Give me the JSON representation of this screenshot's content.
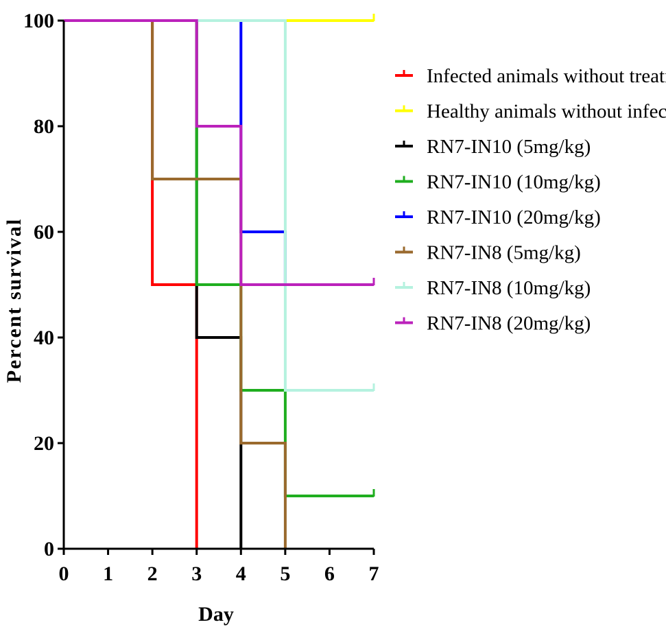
{
  "chart_data": {
    "type": "line",
    "title": "",
    "xlabel": "Day",
    "ylabel": "Percent survival",
    "xlim": [
      0,
      7
    ],
    "ylim": [
      0,
      100
    ],
    "x_ticks": [
      "0",
      "1",
      "2",
      "3",
      "4",
      "5",
      "6",
      "7"
    ],
    "y_ticks": [
      "0",
      "20",
      "40",
      "60",
      "80",
      "100"
    ],
    "grid": false,
    "legend_position": "right",
    "series": [
      {
        "name": "Infected animals without treatment",
        "color": "#ff0000",
        "x": [
          0,
          2,
          2,
          3,
          3
        ],
        "y": [
          100,
          100,
          50,
          50,
          0
        ]
      },
      {
        "name": "Healthy animals without infection",
        "color": "#ffff00",
        "x": [
          0,
          7
        ],
        "y": [
          100,
          100
        ]
      },
      {
        "name": "RN7-IN10 (5mg/kg)",
        "color": "#000000",
        "x": [
          0,
          3,
          3,
          4,
          4
        ],
        "y": [
          100,
          100,
          40,
          40,
          0
        ]
      },
      {
        "name": "RN7-IN10 (10mg/kg)",
        "color": "#1fae1f",
        "x": [
          0,
          3,
          3,
          4,
          4,
          5,
          5,
          7
        ],
        "y": [
          100,
          100,
          50,
          50,
          30,
          30,
          10,
          10
        ]
      },
      {
        "name": "RN7-IN10 (20mg/kg)",
        "color": "#0000ff",
        "x": [
          0,
          4,
          4,
          5,
          5,
          7
        ],
        "y": [
          100,
          100,
          60,
          60,
          50,
          50
        ]
      },
      {
        "name": "RN7-IN8 (5mg/kg)",
        "color": "#9a6a2e",
        "x": [
          0,
          2,
          2,
          4,
          4,
          5,
          5
        ],
        "y": [
          100,
          100,
          70,
          70,
          20,
          20,
          0
        ]
      },
      {
        "name": "RN7-IN8 (10mg/kg)",
        "color": "#b5f2df",
        "x": [
          0,
          5,
          5,
          7
        ],
        "y": [
          100,
          100,
          30,
          30
        ]
      },
      {
        "name": "RN7-IN8 (20mg/kg)",
        "color": "#bb22bb",
        "x": [
          0,
          3,
          3,
          4,
          4,
          7
        ],
        "y": [
          100,
          100,
          80,
          80,
          50,
          50
        ]
      }
    ]
  }
}
